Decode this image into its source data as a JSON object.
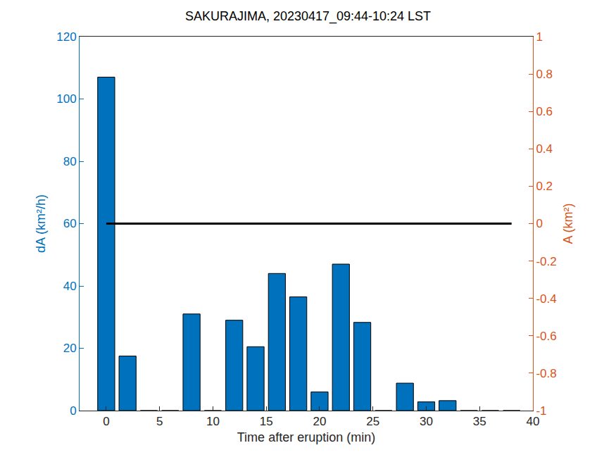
{
  "chart_data": {
    "type": "bar",
    "title": "SAKURAJIMA, 20230417_09:44-10:24 LST",
    "x_label": "Time after eruption (min)",
    "y_label": "dA (km²/h)",
    "y2_label": "A (km²)",
    "x": [
      0,
      2,
      4,
      6,
      8,
      10,
      12,
      14,
      16,
      18,
      20,
      22,
      24,
      26,
      28,
      30,
      32,
      34,
      36,
      38
    ],
    "series": [
      {
        "type": "bar",
        "color": "#0072BD",
        "values": [
          107,
          17.5,
          0,
          0,
          31,
          0,
          29,
          20.5,
          44,
          36.5,
          6,
          47,
          28.3,
          0,
          8.8,
          2.8,
          3.2,
          0,
          0,
          0
        ]
      },
      {
        "type": "line",
        "axis": "y2",
        "color": "#000000",
        "line_style": "solid",
        "values": [
          0,
          0,
          0,
          0,
          0,
          0,
          0,
          0,
          0,
          0,
          0,
          0,
          0,
          0,
          0,
          0,
          0,
          0,
          0,
          0
        ]
      }
    ],
    "xlim": [
      -2.5,
      40
    ],
    "xticks": [
      0,
      5,
      10,
      15,
      20,
      25,
      30,
      35,
      40
    ],
    "ylim": [
      0,
      120
    ],
    "yticks": [
      0,
      20,
      40,
      60,
      80,
      100,
      120
    ],
    "y2lim": [
      -1,
      1
    ],
    "y2ticks": [
      -1,
      -0.8,
      -0.6,
      -0.4,
      -0.2,
      0,
      0.2,
      0.4,
      0.6,
      0.8,
      1
    ],
    "y_color": "#0072BD",
    "y2_color": "#D95319",
    "grid": false
  }
}
